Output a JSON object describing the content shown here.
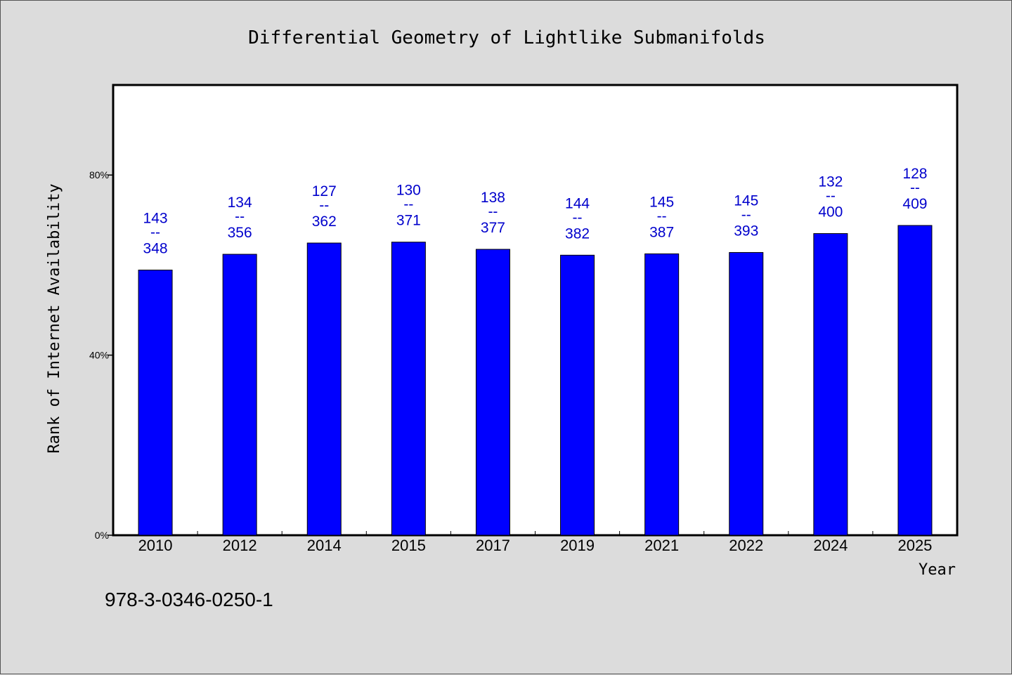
{
  "chart_data": {
    "type": "bar",
    "title": "Differential Geometry of Lightlike Submanifolds",
    "xlabel": "Year",
    "ylabel": "Rank of Internet Availability",
    "categories": [
      "2010",
      "2012",
      "2014",
      "2015",
      "2017",
      "2019",
      "2021",
      "2022",
      "2024",
      "2025"
    ],
    "values": [
      0.589,
      0.624,
      0.649,
      0.651,
      0.635,
      0.622,
      0.625,
      0.628,
      0.67,
      0.688
    ],
    "labels": [
      {
        "top": "143",
        "sep": "--",
        "bottom": "348"
      },
      {
        "top": "134",
        "sep": "--",
        "bottom": "356"
      },
      {
        "top": "127",
        "sep": "--",
        "bottom": "362"
      },
      {
        "top": "130",
        "sep": "--",
        "bottom": "371"
      },
      {
        "top": "138",
        "sep": "--",
        "bottom": "377"
      },
      {
        "top": "144",
        "sep": "--",
        "bottom": "382"
      },
      {
        "top": "145",
        "sep": "--",
        "bottom": "387"
      },
      {
        "top": "145",
        "sep": "--",
        "bottom": "393"
      },
      {
        "top": "132",
        "sep": "--",
        "bottom": "400"
      },
      {
        "top": "128",
        "sep": "--",
        "bottom": "409"
      }
    ],
    "yticks": [
      {
        "value": 0,
        "label": "0%"
      },
      {
        "value": 0.4,
        "label": "40%"
      },
      {
        "value": 0.8,
        "label": "80%"
      }
    ],
    "ylim": [
      0,
      1
    ],
    "grid": false,
    "bar_color": "#0000ff",
    "label_color": "#0000cc"
  },
  "footer": {
    "isbn": "978-3-0346-0250-1"
  }
}
